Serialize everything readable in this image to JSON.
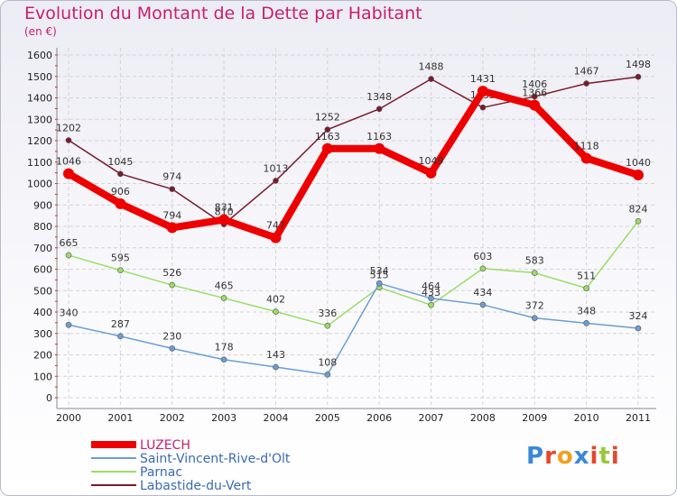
{
  "chart_data": {
    "type": "line",
    "title": "Evolution du Montant de la Dette par Habitant",
    "subtitle": "(en €)",
    "x": [
      "2000",
      "2001",
      "2002",
      "2003",
      "2004",
      "2005",
      "2006",
      "2007",
      "2008",
      "2009",
      "2010",
      "2011"
    ],
    "ylim": [
      0,
      1600
    ],
    "yticks": [
      0,
      100,
      200,
      300,
      400,
      500,
      600,
      700,
      800,
      900,
      1000,
      1100,
      1200,
      1300,
      1400,
      1500,
      1600
    ],
    "grid": true,
    "legend_position": "bottom-left",
    "series": [
      {
        "name": "Labastide-du-Vert",
        "color": "#7a1a2a",
        "values": [
          1202,
          1045,
          974,
          810,
          1013,
          1252,
          1348,
          1488,
          1355,
          1406,
          1467,
          1498
        ]
      },
      {
        "name": "Parnac",
        "color": "#99dd66",
        "values": [
          665,
          595,
          526,
          465,
          402,
          336,
          515,
          433,
          603,
          583,
          511,
          824
        ]
      },
      {
        "name": "Saint-Vincent-Rive-d'Olt",
        "color": "#6a9ed4",
        "values": [
          340,
          287,
          230,
          178,
          143,
          108,
          534,
          464,
          434,
          372,
          348,
          324
        ]
      },
      {
        "name": "LUZECH",
        "color": "#ee0000",
        "values": [
          1046,
          906,
          794,
          831,
          747,
          1163,
          1163,
          1049,
          1431,
          1366,
          1118,
          1040
        ]
      }
    ],
    "legend": [
      "LUZECH",
      "Saint-Vincent-Rive-d'Olt",
      "Parnac",
      "Labastide-du-Vert"
    ]
  },
  "logo": {
    "letters": [
      "P",
      "r",
      "o",
      "x",
      "i",
      "t",
      "i"
    ],
    "colors": [
      "#3a88d8",
      "#e8462a",
      "#f0a020",
      "#3a88d8",
      "#e8462a",
      "#9ac83a",
      "#e8462a"
    ]
  }
}
